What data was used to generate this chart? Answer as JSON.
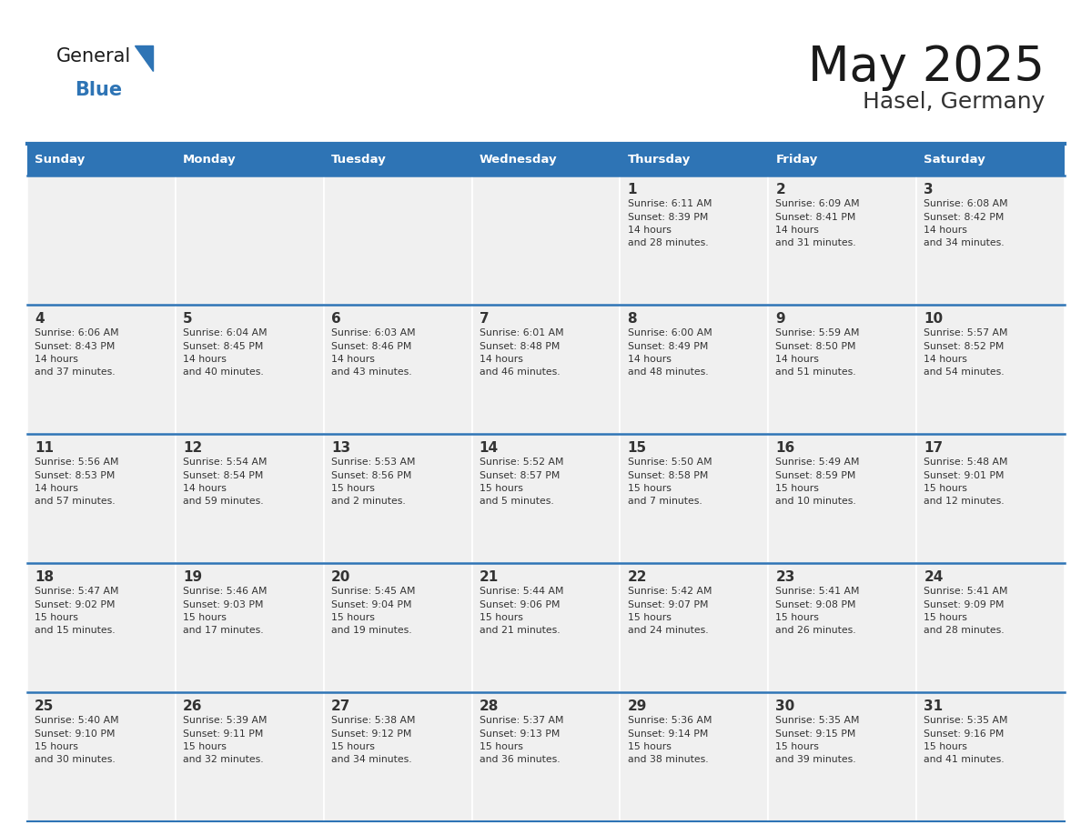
{
  "title": "May 2025",
  "subtitle": "Hasel, Germany",
  "days_of_week": [
    "Sunday",
    "Monday",
    "Tuesday",
    "Wednesday",
    "Thursday",
    "Friday",
    "Saturday"
  ],
  "header_bg": "#2E74B5",
  "header_text": "#FFFFFF",
  "cell_bg": "#F0F0F0",
  "border_color": "#2E74B5",
  "day_num_color": "#333333",
  "text_color": "#333333",
  "title_color": "#1a1a1a",
  "subtitle_color": "#333333",
  "logo_general_color": "#1a1a1a",
  "logo_blue_color": "#2E74B5",
  "logo_triangle_color": "#2E74B5",
  "calendar_data": [
    [
      null,
      null,
      null,
      null,
      {
        "day": 1,
        "sunrise": "6:11 AM",
        "sunset": "8:39 PM",
        "daylight": "14 hours and 28 minutes."
      },
      {
        "day": 2,
        "sunrise": "6:09 AM",
        "sunset": "8:41 PM",
        "daylight": "14 hours and 31 minutes."
      },
      {
        "day": 3,
        "sunrise": "6:08 AM",
        "sunset": "8:42 PM",
        "daylight": "14 hours and 34 minutes."
      }
    ],
    [
      {
        "day": 4,
        "sunrise": "6:06 AM",
        "sunset": "8:43 PM",
        "daylight": "14 hours and 37 minutes."
      },
      {
        "day": 5,
        "sunrise": "6:04 AM",
        "sunset": "8:45 PM",
        "daylight": "14 hours and 40 minutes."
      },
      {
        "day": 6,
        "sunrise": "6:03 AM",
        "sunset": "8:46 PM",
        "daylight": "14 hours and 43 minutes."
      },
      {
        "day": 7,
        "sunrise": "6:01 AM",
        "sunset": "8:48 PM",
        "daylight": "14 hours and 46 minutes."
      },
      {
        "day": 8,
        "sunrise": "6:00 AM",
        "sunset": "8:49 PM",
        "daylight": "14 hours and 48 minutes."
      },
      {
        "day": 9,
        "sunrise": "5:59 AM",
        "sunset": "8:50 PM",
        "daylight": "14 hours and 51 minutes."
      },
      {
        "day": 10,
        "sunrise": "5:57 AM",
        "sunset": "8:52 PM",
        "daylight": "14 hours and 54 minutes."
      }
    ],
    [
      {
        "day": 11,
        "sunrise": "5:56 AM",
        "sunset": "8:53 PM",
        "daylight": "14 hours and 57 minutes."
      },
      {
        "day": 12,
        "sunrise": "5:54 AM",
        "sunset": "8:54 PM",
        "daylight": "14 hours and 59 minutes."
      },
      {
        "day": 13,
        "sunrise": "5:53 AM",
        "sunset": "8:56 PM",
        "daylight": "15 hours and 2 minutes."
      },
      {
        "day": 14,
        "sunrise": "5:52 AM",
        "sunset": "8:57 PM",
        "daylight": "15 hours and 5 minutes."
      },
      {
        "day": 15,
        "sunrise": "5:50 AM",
        "sunset": "8:58 PM",
        "daylight": "15 hours and 7 minutes."
      },
      {
        "day": 16,
        "sunrise": "5:49 AM",
        "sunset": "8:59 PM",
        "daylight": "15 hours and 10 minutes."
      },
      {
        "day": 17,
        "sunrise": "5:48 AM",
        "sunset": "9:01 PM",
        "daylight": "15 hours and 12 minutes."
      }
    ],
    [
      {
        "day": 18,
        "sunrise": "5:47 AM",
        "sunset": "9:02 PM",
        "daylight": "15 hours and 15 minutes."
      },
      {
        "day": 19,
        "sunrise": "5:46 AM",
        "sunset": "9:03 PM",
        "daylight": "15 hours and 17 minutes."
      },
      {
        "day": 20,
        "sunrise": "5:45 AM",
        "sunset": "9:04 PM",
        "daylight": "15 hours and 19 minutes."
      },
      {
        "day": 21,
        "sunrise": "5:44 AM",
        "sunset": "9:06 PM",
        "daylight": "15 hours and 21 minutes."
      },
      {
        "day": 22,
        "sunrise": "5:42 AM",
        "sunset": "9:07 PM",
        "daylight": "15 hours and 24 minutes."
      },
      {
        "day": 23,
        "sunrise": "5:41 AM",
        "sunset": "9:08 PM",
        "daylight": "15 hours and 26 minutes."
      },
      {
        "day": 24,
        "sunrise": "5:41 AM",
        "sunset": "9:09 PM",
        "daylight": "15 hours and 28 minutes."
      }
    ],
    [
      {
        "day": 25,
        "sunrise": "5:40 AM",
        "sunset": "9:10 PM",
        "daylight": "15 hours and 30 minutes."
      },
      {
        "day": 26,
        "sunrise": "5:39 AM",
        "sunset": "9:11 PM",
        "daylight": "15 hours and 32 minutes."
      },
      {
        "day": 27,
        "sunrise": "5:38 AM",
        "sunset": "9:12 PM",
        "daylight": "15 hours and 34 minutes."
      },
      {
        "day": 28,
        "sunrise": "5:37 AM",
        "sunset": "9:13 PM",
        "daylight": "15 hours and 36 minutes."
      },
      {
        "day": 29,
        "sunrise": "5:36 AM",
        "sunset": "9:14 PM",
        "daylight": "15 hours and 38 minutes."
      },
      {
        "day": 30,
        "sunrise": "5:35 AM",
        "sunset": "9:15 PM",
        "daylight": "15 hours and 39 minutes."
      },
      {
        "day": 31,
        "sunrise": "5:35 AM",
        "sunset": "9:16 PM",
        "daylight": "15 hours and 41 minutes."
      }
    ]
  ]
}
